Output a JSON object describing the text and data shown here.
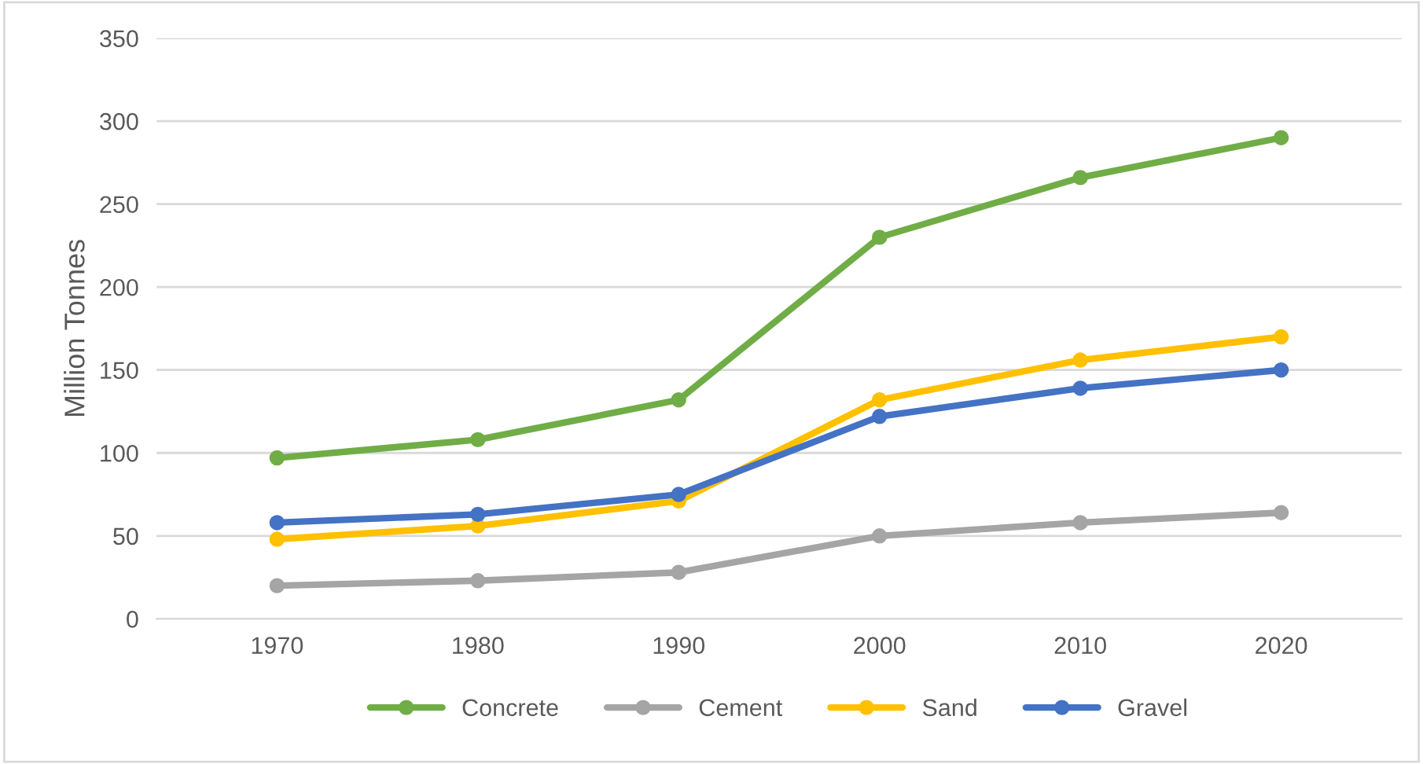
{
  "chart_data": {
    "type": "line",
    "ylabel": "Million Tonnes",
    "categories": [
      "1970",
      "1980",
      "1990",
      "2000",
      "2010",
      "2020"
    ],
    "series": [
      {
        "name": "Concrete",
        "color": "#70ad47",
        "values": [
          97,
          108,
          132,
          230,
          266,
          290
        ]
      },
      {
        "name": "Cement",
        "color": "#a5a5a5",
        "values": [
          20,
          23,
          28,
          50,
          58,
          64
        ]
      },
      {
        "name": "Sand",
        "color": "#ffc000",
        "values": [
          48,
          56,
          71,
          132,
          156,
          170
        ]
      },
      {
        "name": "Gravel",
        "color": "#4472c4",
        "values": [
          58,
          63,
          75,
          122,
          139,
          150
        ]
      }
    ],
    "ylim": [
      0,
      350
    ],
    "yticks": [
      0,
      50,
      100,
      150,
      200,
      250,
      300,
      350
    ],
    "grid": "y",
    "legend": "bottom",
    "marker": "circle",
    "line_style": "solid"
  }
}
